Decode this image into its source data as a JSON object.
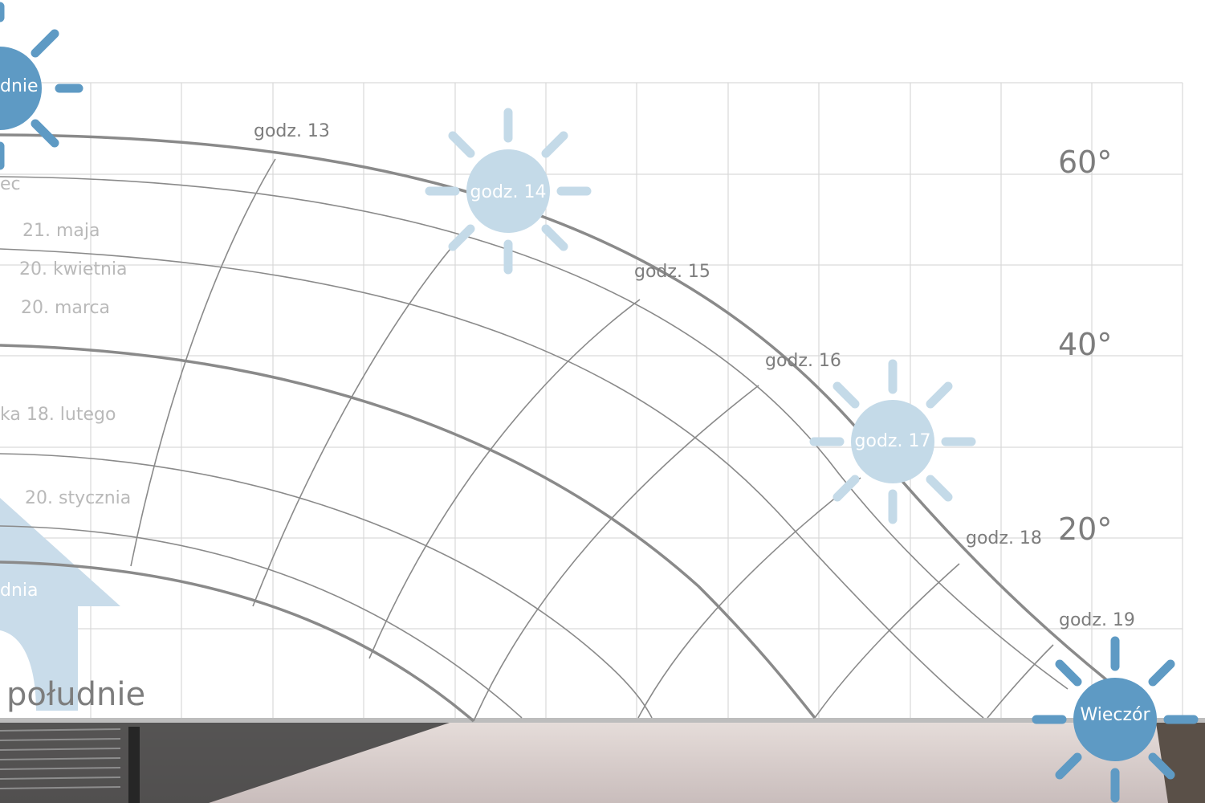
{
  "direction_label": "południe",
  "degree_labels": [
    "60°",
    "40°",
    "20°"
  ],
  "hour_labels": [
    "godz. 13",
    "godz. 15",
    "godz. 16",
    "godz. 18",
    "godz. 19"
  ],
  "date_labels": [
    "ec",
    "21. maja",
    "20. kwietnia",
    "20. marca",
    "ka 18. lutego",
    "20. stycznia",
    "dnia"
  ],
  "suns": [
    {
      "label": "dnie",
      "style": "dark"
    },
    {
      "label": "godz. 14",
      "style": "light"
    },
    {
      "label": "godz. 17",
      "style": "light"
    },
    {
      "label": "Wieczór",
      "style": "dark"
    }
  ],
  "colors": {
    "grid": "#d9d9d9",
    "curve": "#8a8a8a",
    "sun_dark": "#5e9ac4",
    "sun_light": "#c4dae8",
    "house": "#c9dcea",
    "photo_floor": "#d8cfcc"
  }
}
